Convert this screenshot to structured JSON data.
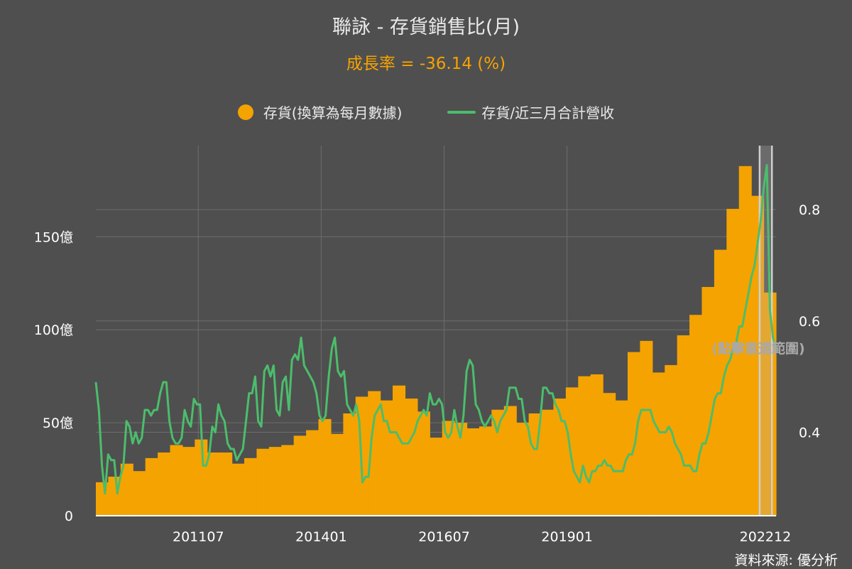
{
  "title": "聯詠 - 存貨銷售比(月)",
  "subtitle": "成長率 = -36.14 (%)",
  "legend": {
    "inventory": "存貨(換算為每月數據)",
    "ratio": "存貨/近三月合計營收"
  },
  "source": "資料來源: 優分析",
  "reset_label": "(點擊重選範圍)",
  "colors": {
    "background": "#4f4f4f",
    "bar": "#f5a300",
    "line": "#4cbd6c",
    "grid": "#6e6e6e",
    "selection": "#b4b4b4"
  },
  "chart_data": {
    "type": "bar+line",
    "months_span": {
      "start": "2009-06",
      "end": "2023-04"
    },
    "x_tick_labels": [
      "201107",
      "201401",
      "201607",
      "201901",
      "202212"
    ],
    "left_axis": {
      "ticks": [
        "0",
        "50億",
        "100億",
        "150億"
      ],
      "tick_values": [
        0,
        50,
        100,
        150
      ],
      "range": [
        0,
        199
      ]
    },
    "right_axis": {
      "ticks": [
        "0.4",
        "0.6",
        "0.8"
      ],
      "tick_values": [
        0.4,
        0.6,
        0.8
      ],
      "range": [
        0.25,
        0.915
      ]
    },
    "selection_range": {
      "start": "2022-12",
      "end": "2023-03"
    },
    "series": [
      {
        "name": "存貨(換算為每月數據)",
        "type": "bar",
        "axis": "left",
        "values": [
          18,
          21,
          28,
          24,
          31,
          34,
          38,
          37,
          41,
          34,
          34,
          28,
          31,
          36,
          37,
          38,
          43,
          46,
          52,
          44,
          55,
          64,
          67,
          62,
          70,
          63,
          56,
          42,
          51,
          50,
          47,
          48,
          57,
          59,
          50,
          55,
          57,
          63,
          69,
          75,
          76,
          66,
          62,
          88,
          94,
          77,
          81,
          97,
          108,
          123,
          143,
          165,
          188,
          172,
          120
        ]
      },
      {
        "name": "存貨/近三月合計營收",
        "type": "line",
        "axis": "right",
        "values": [
          0.49,
          0.44,
          0.34,
          0.29,
          0.36,
          0.35,
          0.35,
          0.29,
          0.32,
          0.34,
          0.42,
          0.41,
          0.38,
          0.4,
          0.38,
          0.39,
          0.44,
          0.44,
          0.43,
          0.44,
          0.44,
          0.47,
          0.49,
          0.49,
          0.42,
          0.39,
          0.38,
          0.38,
          0.39,
          0.44,
          0.42,
          0.41,
          0.46,
          0.45,
          0.45,
          0.34,
          0.34,
          0.36,
          0.41,
          0.4,
          0.45,
          0.43,
          0.42,
          0.38,
          0.37,
          0.37,
          0.35,
          0.36,
          0.37,
          0.42,
          0.47,
          0.47,
          0.5,
          0.42,
          0.41,
          0.51,
          0.52,
          0.5,
          0.52,
          0.44,
          0.43,
          0.49,
          0.5,
          0.44,
          0.53,
          0.54,
          0.53,
          0.57,
          0.52,
          0.51,
          0.5,
          0.49,
          0.47,
          0.43,
          0.42,
          0.43,
          0.5,
          0.55,
          0.57,
          0.51,
          0.5,
          0.51,
          0.45,
          0.44,
          0.43,
          0.45,
          0.42,
          0.31,
          0.32,
          0.32,
          0.39,
          0.43,
          0.44,
          0.45,
          0.42,
          0.42,
          0.4,
          0.4,
          0.4,
          0.39,
          0.38,
          0.38,
          0.38,
          0.39,
          0.4,
          0.42,
          0.43,
          0.44,
          0.43,
          0.47,
          0.45,
          0.45,
          0.46,
          0.45,
          0.4,
          0.39,
          0.4,
          0.44,
          0.41,
          0.39,
          0.43,
          0.51,
          0.53,
          0.52,
          0.45,
          0.44,
          0.42,
          0.41,
          0.42,
          0.43,
          0.42,
          0.4,
          0.42,
          0.43,
          0.44,
          0.48,
          0.48,
          0.48,
          0.46,
          0.46,
          0.42,
          0.41,
          0.38,
          0.37,
          0.37,
          0.42,
          0.48,
          0.48,
          0.47,
          0.47,
          0.45,
          0.44,
          0.42,
          0.42,
          0.4,
          0.36,
          0.33,
          0.32,
          0.31,
          0.34,
          0.32,
          0.31,
          0.33,
          0.33,
          0.34,
          0.34,
          0.35,
          0.34,
          0.34,
          0.33,
          0.33,
          0.33,
          0.33,
          0.35,
          0.36,
          0.36,
          0.38,
          0.42,
          0.44,
          0.44,
          0.44,
          0.44,
          0.42,
          0.41,
          0.4,
          0.4,
          0.4,
          0.41,
          0.4,
          0.38,
          0.37,
          0.36,
          0.34,
          0.34,
          0.34,
          0.33,
          0.33,
          0.36,
          0.38,
          0.38,
          0.4,
          0.43,
          0.46,
          0.47,
          0.47,
          0.5,
          0.52,
          0.53,
          0.55,
          0.56,
          0.59,
          0.59,
          0.62,
          0.65,
          0.68,
          0.7,
          0.74,
          0.78,
          0.84,
          0.88,
          0.62,
          0.57,
          0.55
        ]
      }
    ]
  }
}
